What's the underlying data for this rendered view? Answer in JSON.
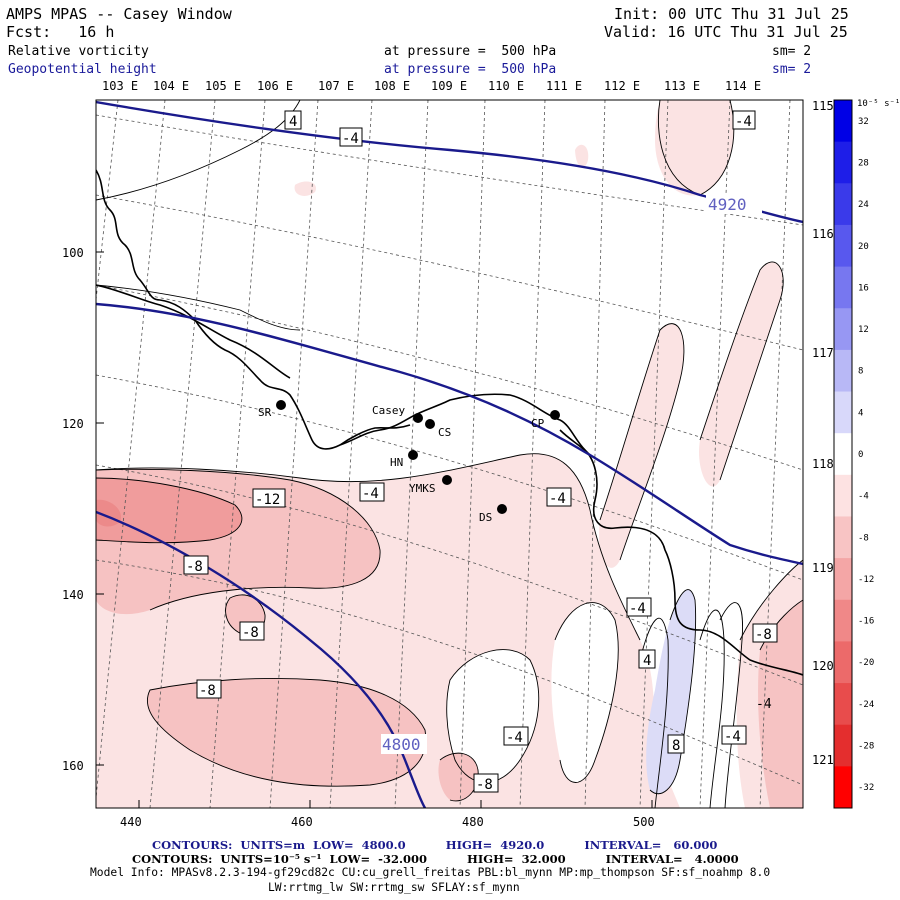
{
  "header": {
    "title": "AMPS MPAS -- Casey Window",
    "fcst": "Fcst:   16 h",
    "init": "Init: 00 UTC Thu 31 Jul 25",
    "valid": "Valid: 16 UTC Thu 31 Jul 25",
    "field1": "Relative vorticity",
    "field1_level": "at pressure =  500 hPa",
    "field1_sm": "sm= 2",
    "field2": "Geopotential height",
    "field2_level": "at pressure =  500 hPa",
    "field2_sm": "sm= 2"
  },
  "top_longitudes": [
    "103 E",
    "104 E",
    "105 E",
    "106 E",
    "107 E",
    "108 E",
    "109 E",
    "110 E",
    "111 E",
    "112 E",
    "113 E",
    "114 E"
  ],
  "right_longitudes": [
    "115 E",
    "116 E",
    "117 E",
    "118 E",
    "119 E",
    "120 E",
    "121 E"
  ],
  "y_ticks": [
    "100",
    "120",
    "140",
    "160"
  ],
  "x_ticks": [
    "440",
    "460",
    "480",
    "500"
  ],
  "stations": [
    {
      "name": "SR"
    },
    {
      "name": "Casey"
    },
    {
      "name": "CS"
    },
    {
      "name": "CP"
    },
    {
      "name": "HN"
    },
    {
      "name": "YMKS"
    },
    {
      "name": "DS"
    }
  ],
  "contour_labels": {
    "vorticity": [
      "4",
      "-4",
      "-4",
      "-4",
      "-4",
      "-12",
      "-8",
      "-8",
      "-8",
      "-8",
      "-4",
      "4",
      "-8",
      "-4",
      "8",
      "-4",
      "-4",
      "-8"
    ],
    "height": [
      "4920",
      "4800"
    ]
  },
  "colorbar": {
    "unit": "10⁻⁵ s⁻¹",
    "ticks": [
      "32",
      "28",
      "24",
      "20",
      "16",
      "12",
      "8",
      "4",
      "0",
      "-4",
      "-8",
      "-12",
      "-16",
      "-20",
      "-24",
      "-28",
      "-32"
    ],
    "colors": [
      "#0000e6",
      "#1e1ee8",
      "#3a3aea",
      "#5858ee",
      "#7777f0",
      "#9797f3",
      "#b8b8f6",
      "#d8d8fa",
      "#ffffff",
      "#fde2e2",
      "#f8c4c4",
      "#f4a6a6",
      "#f08888",
      "#ec6a6a",
      "#e84c4c",
      "#e42e2e",
      "#ff0000"
    ]
  },
  "footer": {
    "line1": "CONTOURS:  UNITS=m  LOW=  4800.0          HIGH=  4920.0          INTERVAL=   60.000",
    "line2": "CONTOURS:  UNITS=10⁻⁵ s⁻¹  LOW=  -32.000          HIGH=  32.000          INTERVAL=   4.0000",
    "line3": "Model Info: MPASv8.2.3-194-gf29cd82c CU:cu_grell_freitas PBL:bl_mynn MP:mp_thompson SF:sf_noahmp 8.0",
    "line4": "LW:rrtmg_lw SW:rrtmg_sw SFLAY:sf_mynn"
  },
  "colors": {
    "height_contour": "#1a1a8c",
    "light_red": "#fbe4e4",
    "mid_red": "#f4b4b4",
    "strong_red": "#ee9090",
    "light_blue": "#dcdcf8"
  }
}
